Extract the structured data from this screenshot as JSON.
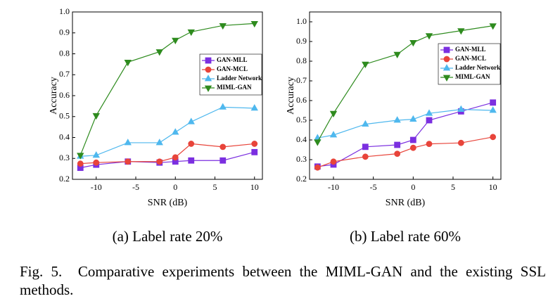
{
  "chart_data": [
    {
      "type": "line",
      "caption": "(a) Label rate 20%",
      "xlabel": "SNR (dB)",
      "ylabel": "Accuracy",
      "x": [
        -12,
        -10,
        -6,
        -2,
        0,
        2,
        6,
        10
      ],
      "xlim": [
        -13,
        11
      ],
      "xticks": [
        -10,
        -5,
        0,
        5,
        10
      ],
      "ylim": [
        0.2,
        1.0
      ],
      "yticks": [
        {
          "value": 0.2,
          "label": "0.2"
        },
        0.3,
        0.4,
        0.5,
        0.6,
        0.7,
        0.8,
        0.9,
        {
          "value": 1.0,
          "label": "1.0"
        }
      ],
      "legend": "center right",
      "series": [
        {
          "name": "GAN-MLL",
          "color": "#7b2fe0",
          "marker": "square",
          "values": [
            0.255,
            0.27,
            0.285,
            0.28,
            0.285,
            0.29,
            0.29,
            0.33
          ]
        },
        {
          "name": "GAN-MCL",
          "color": "#e8443a",
          "marker": "circle",
          "values": [
            0.275,
            0.28,
            0.285,
            0.285,
            0.305,
            0.37,
            0.355,
            0.37
          ]
        },
        {
          "name": "Ladder Network",
          "color": "#4fb8ee",
          "marker": "triangle-up",
          "values": [
            0.31,
            0.315,
            0.375,
            0.375,
            0.425,
            0.475,
            0.545,
            0.54
          ]
        },
        {
          "name": "MIML-GAN",
          "color": "#2e8b1e",
          "marker": "triangle-down",
          "values": [
            0.315,
            0.505,
            0.76,
            0.81,
            0.865,
            0.905,
            0.935,
            0.945
          ]
        }
      ]
    },
    {
      "type": "line",
      "caption": "(b) Label rate 60%",
      "xlabel": "SNR (dB)",
      "ylabel": "Accuracy",
      "x": [
        -12,
        -10,
        -6,
        -2,
        0,
        2,
        6,
        10
      ],
      "xlim": [
        -13,
        11
      ],
      "xticks": [
        -10,
        -5,
        0,
        5,
        10
      ],
      "ylim": [
        0.2,
        1.05
      ],
      "yticks": [
        {
          "value": 0.2,
          "label": "0.2"
        },
        0.3,
        0.4,
        0.5,
        0.6,
        0.7,
        0.8,
        0.9,
        {
          "value": 1.0,
          "label": "1.0"
        }
      ],
      "legend": "upper right",
      "series": [
        {
          "name": "GAN-MLL",
          "color": "#7b2fe0",
          "marker": "square",
          "values": [
            0.265,
            0.275,
            0.365,
            0.375,
            0.4,
            0.5,
            0.545,
            0.59
          ]
        },
        {
          "name": "GAN-MCL",
          "color": "#e8443a",
          "marker": "circle",
          "values": [
            0.26,
            0.29,
            0.315,
            0.33,
            0.36,
            0.38,
            0.385,
            0.415
          ]
        },
        {
          "name": "Ladder Network",
          "color": "#4fb8ee",
          "marker": "triangle-up",
          "values": [
            0.41,
            0.425,
            0.48,
            0.5,
            0.505,
            0.535,
            0.555,
            0.55
          ]
        },
        {
          "name": "MIML-GAN",
          "color": "#2e8b1e",
          "marker": "triangle-down",
          "values": [
            0.39,
            0.535,
            0.785,
            0.835,
            0.895,
            0.93,
            0.955,
            0.98
          ]
        }
      ]
    }
  ],
  "caption": "Fig. 5.  Comparative experiments between the MIML-GAN and the existing SSL methods."
}
